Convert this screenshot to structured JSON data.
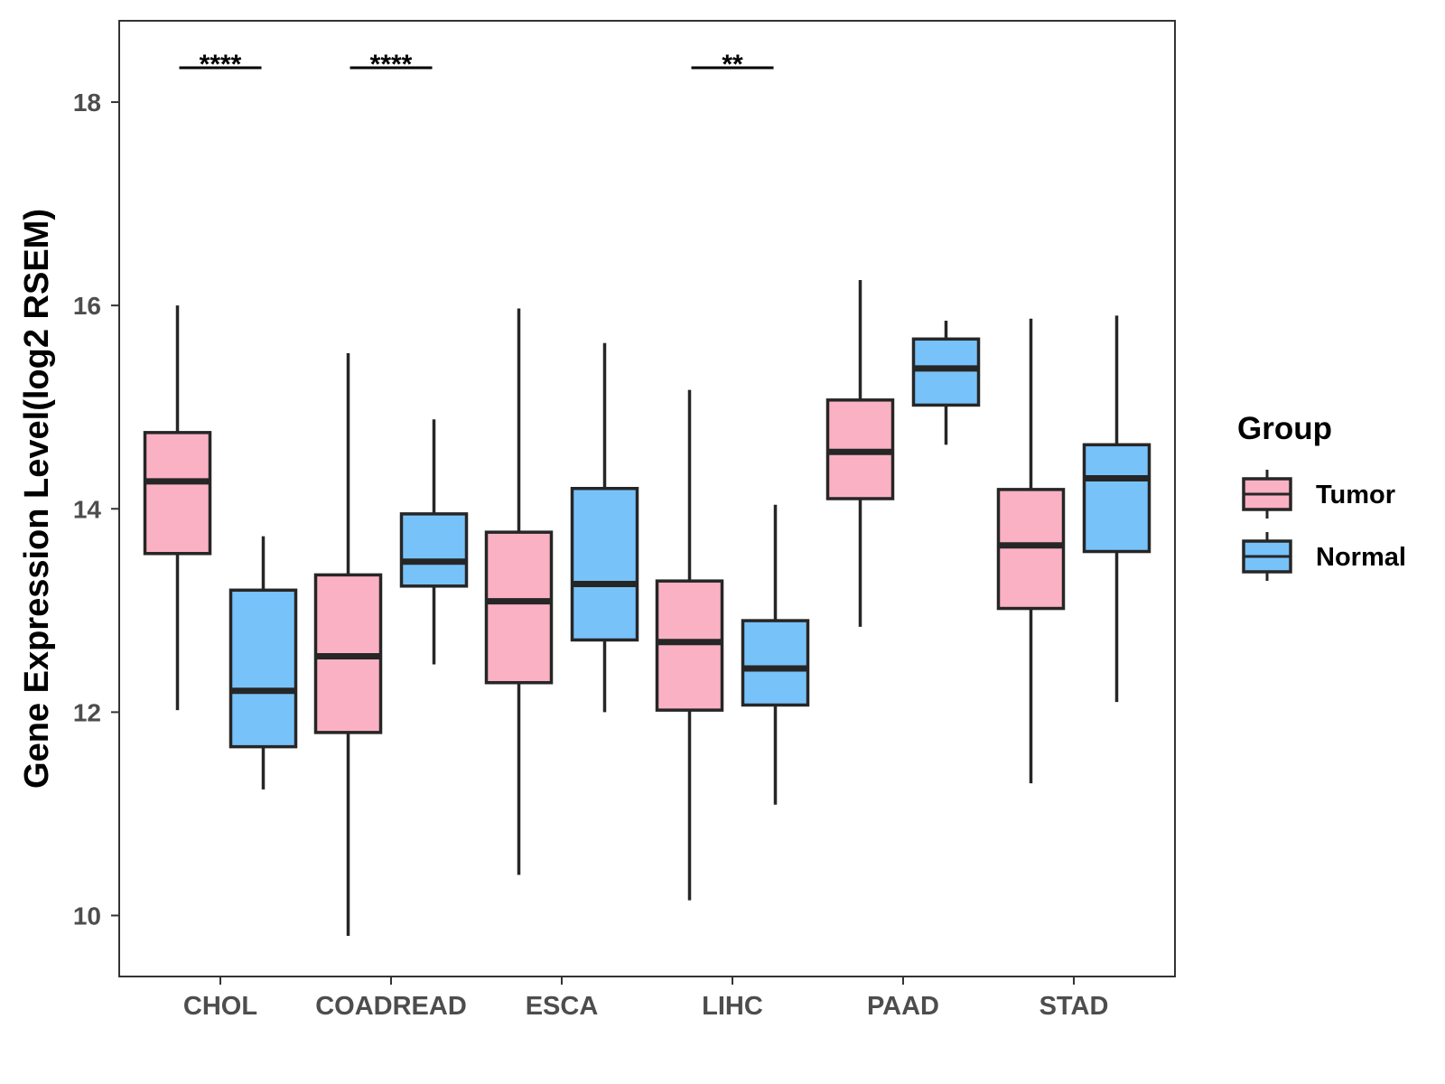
{
  "chart_data": {
    "type": "boxplot",
    "title": "",
    "xlabel": "",
    "ylabel": "Gene Expression Level(log2 RSEM)",
    "ylim": [
      9.4,
      18.8
    ],
    "yticks": [
      10,
      12,
      14,
      16,
      18
    ],
    "categories": [
      "CHOL",
      "COADREAD",
      "ESCA",
      "LIHC",
      "PAAD",
      "STAD"
    ],
    "legend": {
      "title": "Group",
      "position": "right",
      "entries": [
        "Tumor",
        "Normal"
      ]
    },
    "colors": {
      "Tumor": "#FBB1C4",
      "Normal": "#78C2FA",
      "stroke": "#262626"
    },
    "series": [
      {
        "name": "Tumor",
        "boxes": [
          {
            "category": "CHOL",
            "min": 12.02,
            "q1": 13.56,
            "median": 14.27,
            "q3": 14.75,
            "max": 16.0
          },
          {
            "category": "COADREAD",
            "min": 9.8,
            "q1": 11.8,
            "median": 12.55,
            "q3": 13.35,
            "max": 15.53
          },
          {
            "category": "ESCA",
            "min": 10.4,
            "q1": 12.29,
            "median": 13.09,
            "q3": 13.77,
            "max": 15.97
          },
          {
            "category": "LIHC",
            "min": 10.15,
            "q1": 12.02,
            "median": 12.69,
            "q3": 13.29,
            "max": 15.17
          },
          {
            "category": "PAAD",
            "min": 12.84,
            "q1": 14.1,
            "median": 14.56,
            "q3": 15.07,
            "max": 16.25
          },
          {
            "category": "STAD",
            "min": 11.3,
            "q1": 13.02,
            "median": 13.64,
            "q3": 14.19,
            "max": 15.87
          }
        ]
      },
      {
        "name": "Normal",
        "boxes": [
          {
            "category": "CHOL",
            "min": 11.24,
            "q1": 11.66,
            "median": 12.21,
            "q3": 13.2,
            "max": 13.73
          },
          {
            "category": "COADREAD",
            "min": 12.47,
            "q1": 13.24,
            "median": 13.48,
            "q3": 13.95,
            "max": 14.88
          },
          {
            "category": "ESCA",
            "min": 12.0,
            "q1": 12.71,
            "median": 13.26,
            "q3": 14.2,
            "max": 15.63
          },
          {
            "category": "LIHC",
            "min": 11.09,
            "q1": 12.07,
            "median": 12.43,
            "q3": 12.9,
            "max": 14.04
          },
          {
            "category": "PAAD",
            "min": 14.63,
            "q1": 15.02,
            "median": 15.38,
            "q3": 15.67,
            "max": 15.85
          },
          {
            "category": "STAD",
            "min": 12.1,
            "q1": 13.58,
            "median": 14.3,
            "q3": 14.63,
            "max": 15.9
          }
        ]
      }
    ],
    "annotations": [
      {
        "category": "CHOL",
        "text": "****"
      },
      {
        "category": "COADREAD",
        "text": "****"
      },
      {
        "category": "LIHC",
        "text": "**"
      }
    ]
  }
}
